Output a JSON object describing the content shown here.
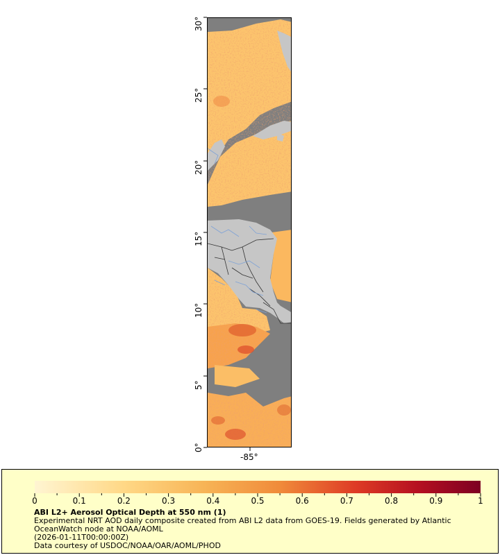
{
  "map": {
    "lat_labels": [
      "30°",
      "25°",
      "20°",
      "15°",
      "10°",
      "5°",
      "0°"
    ],
    "lon_labels": [
      "-85°"
    ],
    "colors": {
      "no_data": "#7f7f7f",
      "land": "#c6c6c6",
      "rivers": "#7ea2d6",
      "borders": "#333333"
    }
  },
  "legend": {
    "title": "ABI L2+ Aerosol Optical Depth at 550 nm (1)",
    "line1": "Experimental NRT AOD daily composite created from ABI L2 data from GOES-19. Fields generated by Atlantic OceanWatch node at NOAA/AOML",
    "line2": "(2026-01-11T00:00:00Z)",
    "line3": "Data courtesy of USDOC/NOAA/OAR/AOML/PHOD",
    "tick_labels": [
      "0",
      "0.1",
      "0.2",
      "0.3",
      "0.4",
      "0.5",
      "0.6",
      "0.7",
      "0.8",
      "0.9",
      "1"
    ],
    "color_stops": [
      "#fff5d2",
      "#ffd886",
      "#f7b456",
      "#f08b3a",
      "#de3b25",
      "#b51021",
      "#7d0022"
    ]
  }
}
